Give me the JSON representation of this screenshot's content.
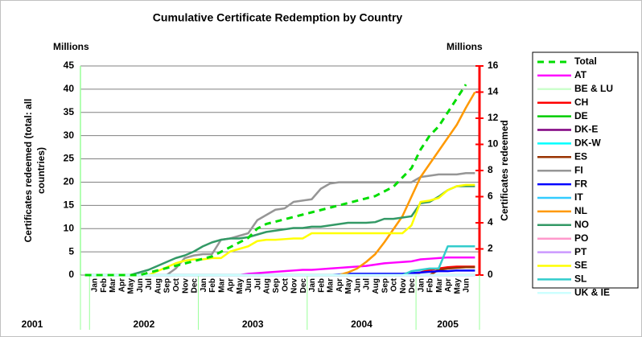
{
  "chart_data": {
    "type": "line",
    "title": "Cumulative Certificate Redemption by Country",
    "yunit": "Millions",
    "y2unit": "Millions",
    "ylabel": [
      "Certificates redeemed (total: all",
      "countries)"
    ],
    "y2label": "Certificates redeemed",
    "categories": [
      null,
      "Jan",
      "Feb",
      "Mar",
      "Apr",
      "May",
      "Jun",
      "Jul",
      "Aug",
      "Sep",
      "Oct",
      "Nov",
      "Dec",
      "Jan",
      "Feb",
      "Mar",
      "Apr",
      "May",
      "Jun",
      "Jul",
      "Aug",
      "Sep",
      "Oct",
      "Nov",
      "Dec",
      "Jan",
      "Feb",
      "Mar",
      "Apr",
      "May",
      "Jun",
      "Jul",
      "Aug",
      "Sep",
      "Oct",
      "Nov",
      "Dec",
      "Jan",
      "Feb",
      "Mar",
      "Apr",
      "May",
      "Jun",
      null
    ],
    "category_groups": [
      {
        "label": "2001",
        "size": 1
      },
      {
        "label": "2002",
        "size": 12
      },
      {
        "label": "2003",
        "size": 12
      },
      {
        "label": "2004",
        "size": 12
      },
      {
        "label": "2005",
        "size": 7
      }
    ],
    "ylim": [
      0,
      45
    ],
    "yticks": [
      0,
      5,
      10,
      15,
      20,
      25,
      30,
      35,
      40,
      45
    ],
    "y2lim": [
      0,
      16
    ],
    "y2ticks": [
      0,
      2,
      4,
      6,
      8,
      10,
      12,
      14,
      16
    ],
    "y2color": "#ff0000",
    "grid": true,
    "legend": "right",
    "series": [
      {
        "name": "Total",
        "color": "#00dd00",
        "style": "dashed",
        "values": [
          0,
          0,
          0,
          0,
          0,
          0,
          0,
          0.5,
          1,
          1.5,
          2,
          2.5,
          3,
          3.5,
          4,
          5,
          6,
          7,
          8,
          10,
          11,
          11.5,
          12,
          12.5,
          13,
          13.5,
          14,
          14.5,
          15,
          15.5,
          16,
          16.5,
          17,
          18,
          19,
          21,
          23,
          27,
          30,
          32,
          35,
          38,
          41,
          null
        ]
      },
      {
        "name": "AT",
        "color": "#ff00ff",
        "axis": "y2",
        "values": [
          0,
          0,
          0,
          0,
          0,
          0,
          0,
          0,
          0,
          0,
          0,
          0,
          0,
          0,
          0,
          0,
          0,
          0,
          0.1,
          0.15,
          0.2,
          0.25,
          0.3,
          0.35,
          0.4,
          0.4,
          0.45,
          0.5,
          0.55,
          0.6,
          0.65,
          0.7,
          0.8,
          0.9,
          0.95,
          1.0,
          1.05,
          1.2,
          1.25,
          1.3,
          1.35,
          1.35,
          1.35,
          1.35
        ]
      },
      {
        "name": "BE & LU",
        "color": "#ccffcc",
        "axis": "y2",
        "values": [
          0,
          0,
          0,
          0,
          0,
          0,
          0,
          0,
          0,
          0,
          0,
          0,
          0,
          0,
          0,
          0,
          0,
          0,
          0,
          0,
          0,
          0,
          0,
          0,
          0,
          0,
          0,
          0,
          0,
          0,
          0,
          0,
          0,
          0,
          0,
          0,
          0,
          0,
          0,
          0,
          0,
          0,
          0,
          0
        ]
      },
      {
        "name": "CH",
        "color": "#ff0000",
        "axis": "y2",
        "values": [
          0,
          0,
          0,
          0,
          0,
          0,
          0,
          0,
          0,
          0,
          0,
          0,
          0,
          0,
          0,
          0,
          0,
          0,
          0,
          0,
          0,
          0,
          0,
          0,
          0,
          0,
          0,
          0,
          0,
          0,
          0,
          0,
          0,
          0,
          0,
          0,
          0,
          0.2,
          0.4,
          0.5,
          0.6,
          0.65,
          0.65,
          0.65
        ]
      },
      {
        "name": "DE",
        "color": "#00cc00",
        "axis": "y2",
        "values": [
          0,
          0,
          0,
          0,
          0,
          0,
          0,
          0,
          0,
          0,
          0,
          0,
          0,
          0,
          0,
          0,
          0,
          0,
          0,
          0,
          0,
          0,
          0,
          0,
          0,
          0,
          0,
          0,
          0,
          0,
          0,
          0,
          0,
          0,
          0,
          0,
          0,
          0,
          0,
          0,
          0,
          0,
          0,
          0
        ]
      },
      {
        "name": "DK-E",
        "color": "#800080",
        "axis": "y2",
        "values": [
          0,
          0,
          0,
          0,
          0,
          0,
          0,
          0,
          0,
          0,
          0,
          0,
          0,
          0,
          0,
          0,
          0,
          0,
          0,
          0,
          0,
          0,
          0,
          0,
          0,
          0,
          0,
          0,
          0,
          0,
          0,
          0,
          0,
          0,
          0,
          0,
          0,
          0,
          0,
          0,
          0,
          0,
          0,
          0
        ]
      },
      {
        "name": "DK-W",
        "color": "#00ffff",
        "axis": "y2",
        "values": [
          0,
          0,
          0,
          0,
          0,
          0,
          0,
          0,
          0,
          0,
          0,
          0,
          0,
          0,
          0,
          0,
          0,
          0,
          0,
          0,
          0,
          0,
          0,
          0,
          0,
          0,
          0,
          0,
          0,
          0,
          0,
          0,
          0,
          0,
          0,
          0,
          0,
          0,
          0,
          0,
          0,
          0,
          0,
          0
        ]
      },
      {
        "name": "ES",
        "color": "#993300",
        "axis": "y2",
        "values": [
          0,
          0,
          0,
          0,
          0,
          0,
          0,
          0,
          0,
          0,
          0,
          0,
          0,
          0,
          0,
          0,
          0,
          0,
          0,
          0,
          0,
          0,
          0,
          0,
          0,
          0,
          0,
          0,
          0,
          0,
          0,
          0,
          0,
          0,
          0,
          0,
          0,
          0,
          0,
          0.4,
          0.5,
          0.55,
          0.6,
          0.6
        ]
      },
      {
        "name": "FI",
        "color": "#969696",
        "axis": "y2",
        "values": [
          0,
          0,
          0,
          0,
          0,
          0,
          0,
          0,
          0,
          0,
          0.5,
          1.3,
          1.5,
          1.6,
          1.6,
          2.7,
          2.8,
          3,
          3.2,
          4.2,
          4.6,
          5,
          5.1,
          5.6,
          5.7,
          5.8,
          6.6,
          7,
          7.1,
          7.1,
          7.1,
          7.1,
          7.1,
          7.1,
          7.1,
          7.1,
          7.1,
          7.5,
          7.6,
          7.7,
          7.7,
          7.7,
          7.8,
          7.8
        ]
      },
      {
        "name": "FR",
        "color": "#0000ff",
        "axis": "y2",
        "values": [
          0,
          0,
          0,
          0,
          0,
          0,
          0,
          0,
          0,
          0,
          0,
          0,
          0,
          0,
          0,
          0,
          0,
          0,
          0,
          0,
          0,
          0,
          0,
          0,
          0,
          0,
          0,
          0,
          0.05,
          0.1,
          0.1,
          0.1,
          0.1,
          0.1,
          0.1,
          0.1,
          0.15,
          0.2,
          0.25,
          0.3,
          0.3,
          0.35,
          0.35,
          0.35
        ]
      },
      {
        "name": "IT",
        "color": "#33ccff",
        "axis": "y2",
        "values": [
          0,
          0,
          0,
          0,
          0,
          0,
          0,
          0,
          0,
          0,
          0,
          0,
          0,
          0,
          0,
          0,
          0,
          0,
          0,
          0,
          0,
          0,
          0,
          0,
          0,
          0,
          0,
          0,
          0,
          0,
          0,
          0,
          0,
          0,
          0,
          0,
          0,
          0,
          0,
          0,
          0,
          0,
          0,
          0
        ]
      },
      {
        "name": "NL",
        "color": "#ff9900",
        "axis": "y2",
        "values": [
          0,
          0,
          0,
          0,
          0,
          0,
          0,
          0,
          0,
          0,
          0,
          0,
          0,
          0,
          0,
          0,
          0,
          0,
          0,
          0,
          0,
          0,
          0,
          0,
          0,
          0,
          0,
          0,
          0,
          0.2,
          0.5,
          1,
          1.6,
          2.5,
          3.5,
          4.5,
          6,
          7.5,
          8.5,
          9.5,
          10.5,
          11.5,
          12.8,
          14
        ]
      },
      {
        "name": "NO",
        "color": "#339966",
        "axis": "y2",
        "values": [
          0,
          0,
          0,
          0,
          0,
          0,
          0.2,
          0.4,
          0.7,
          1,
          1.3,
          1.5,
          1.8,
          2.2,
          2.5,
          2.7,
          2.8,
          2.8,
          2.9,
          3.1,
          3.3,
          3.4,
          3.5,
          3.6,
          3.6,
          3.7,
          3.7,
          3.8,
          3.9,
          4,
          4,
          4,
          4.05,
          4.3,
          4.3,
          4.4,
          4.5,
          5.5,
          5.6,
          6,
          6.5,
          6.8,
          6.8,
          6.8
        ]
      },
      {
        "name": "PO",
        "color": "#ff99cc",
        "axis": "y2",
        "values": [
          0,
          0,
          0,
          0,
          0,
          0,
          0,
          0,
          0,
          0,
          0,
          0,
          0,
          0,
          0,
          0,
          0,
          0,
          0,
          0,
          0,
          0,
          0,
          0,
          0,
          0,
          0,
          0,
          0,
          0,
          0,
          0,
          0,
          0,
          0,
          0,
          0,
          0,
          0,
          0,
          0,
          0,
          0,
          0
        ]
      },
      {
        "name": "PT",
        "color": "#cc99ff",
        "axis": "y2",
        "values": [
          0,
          0,
          0,
          0,
          0,
          0,
          0,
          0,
          0,
          0,
          0,
          0,
          0,
          0,
          0,
          0,
          0,
          0,
          0,
          0,
          0,
          0,
          0,
          0,
          0,
          0,
          0,
          0,
          0,
          0,
          0,
          0,
          0,
          0,
          0,
          0,
          0,
          0,
          0,
          0,
          0,
          0,
          0,
          0
        ]
      },
      {
        "name": "SE",
        "color": "#ffff00",
        "axis": "y2",
        "values": [
          0,
          0,
          0,
          0,
          0,
          0,
          0,
          0,
          0.3,
          0.6,
          0.9,
          1.1,
          1.2,
          1.2,
          1.3,
          1.3,
          1.8,
          2,
          2.2,
          2.6,
          2.7,
          2.7,
          2.75,
          2.8,
          2.8,
          3.2,
          3.2,
          3.2,
          3.2,
          3.2,
          3.2,
          3.2,
          3.2,
          3.2,
          3.2,
          3.2,
          3.8,
          5.6,
          5.7,
          5.9,
          6.5,
          6.8,
          6.9,
          6.9
        ]
      },
      {
        "name": "SL",
        "color": "#33cccc",
        "axis": "y2",
        "values": [
          0,
          0,
          0,
          0,
          0,
          0,
          0,
          0,
          0,
          0,
          0,
          0,
          0,
          0,
          0,
          0,
          0,
          0,
          0,
          0,
          0,
          0,
          0,
          0,
          0,
          0,
          0,
          0,
          0,
          0,
          0,
          0,
          0,
          0,
          0,
          0,
          0.3,
          0.4,
          0.5,
          0.5,
          2.2,
          2.2,
          2.2,
          2.2
        ]
      },
      {
        "name": "UK & IE",
        "color": "#ccffff",
        "axis": "y2",
        "values": [
          0,
          0,
          0,
          0,
          0,
          0,
          0,
          0,
          0,
          0,
          0,
          0,
          0,
          0,
          0,
          0,
          0,
          0,
          0,
          0,
          0,
          0,
          0,
          0,
          0,
          0,
          0,
          0,
          0,
          0,
          0,
          0,
          0,
          0,
          0,
          0,
          0,
          0,
          0,
          0,
          0,
          0,
          0,
          0
        ]
      }
    ]
  }
}
